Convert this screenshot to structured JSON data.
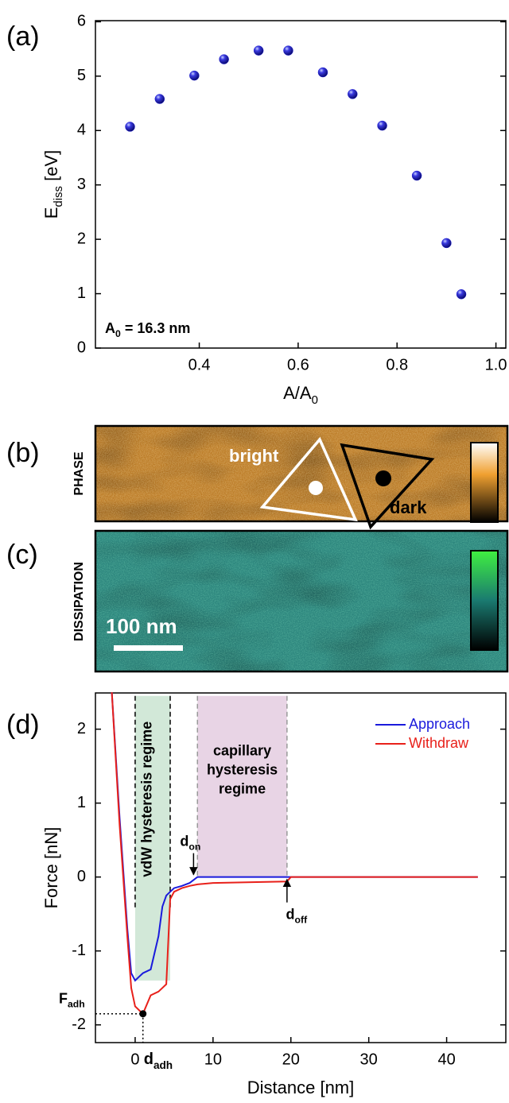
{
  "chart_data": [
    {
      "type": "scatter",
      "panel": "(a)",
      "xlabel": [
        "A/A",
        "0"
      ],
      "ylabel": [
        "E",
        "diss",
        " [eV]"
      ],
      "x": [
        0.26,
        0.32,
        0.39,
        0.45,
        0.52,
        0.58,
        0.65,
        0.71,
        0.77,
        0.84,
        0.9,
        0.93
      ],
      "values": [
        4.07,
        4.58,
        5.01,
        5.31,
        5.47,
        5.47,
        5.07,
        4.67,
        4.09,
        3.17,
        1.93,
        0.99
      ],
      "color": "#1f1fd0",
      "xlim": [
        0.19,
        1.02
      ],
      "ylim": [
        0,
        6.02
      ],
      "xticks": [
        0.4,
        0.6,
        0.8,
        {
          "value": 1,
          "label": "1.0"
        }
      ],
      "yticks": [
        0,
        1,
        2,
        3,
        4,
        5,
        6
      ],
      "annotation": [
        "A",
        "0",
        " = 16.3 nm"
      ]
    },
    {
      "type": "line",
      "panel": "(d)",
      "xlabel": "Distance [nm]",
      "ylabel": "Force [nN]",
      "x": [
        -3,
        -2,
        -1,
        -0.5,
        0,
        0.5,
        1,
        2,
        3,
        3.5,
        4,
        4.5,
        5,
        6,
        7,
        8,
        10,
        15,
        19.5,
        20,
        25,
        30,
        35,
        40,
        44
      ],
      "series": [
        {
          "name": "Approach",
          "color": "#1a1adc",
          "values": [
            2.5,
            0.8,
            -0.7,
            -1.3,
            -1.4,
            -1.35,
            -1.3,
            -1.25,
            -0.8,
            -0.4,
            -0.25,
            -0.2,
            -0.15,
            -0.12,
            -0.08,
            0,
            0,
            0,
            0,
            0,
            0,
            0,
            0,
            0,
            0
          ]
        },
        {
          "name": "Withdraw",
          "color": "#e8201a",
          "values": [
            2.5,
            0.7,
            -0.8,
            -1.5,
            -1.75,
            -1.8,
            -1.85,
            -1.6,
            -1.55,
            -1.5,
            -1.45,
            -0.3,
            -0.2,
            -0.15,
            -0.12,
            -0.1,
            -0.08,
            -0.07,
            -0.06,
            0,
            0,
            0,
            0,
            0,
            0
          ]
        }
      ],
      "xlim": [
        -5.1,
        47.6
      ],
      "ylim": [
        -2.24,
        2.49
      ],
      "xticks": [
        0,
        10,
        20,
        30,
        40
      ],
      "yticks": [
        -2,
        -1,
        0,
        1,
        2
      ],
      "legend": "upper right",
      "regions": [
        {
          "label": "vdW hysteresis regime",
          "x": [
            0,
            4.5
          ],
          "y": [
            -1.4,
            2.45
          ],
          "color": "#cde6d4"
        },
        {
          "label": [
            "capillary",
            "hysteresis",
            "regime"
          ],
          "x": [
            8,
            19.5
          ],
          "y": [
            0,
            2.45
          ],
          "color": "#e5cfe2"
        }
      ],
      "f_adh": {
        "label": [
          "F",
          "adh"
        ],
        "value": -1.85
      },
      "d_adh": {
        "label": [
          "d",
          "adh"
        ],
        "value": 1
      },
      "d_on": {
        "label": [
          "d",
          "on"
        ],
        "value": 7.5
      },
      "d_off": {
        "label": [
          "d",
          "off"
        ],
        "value": 19.5
      }
    }
  ],
  "images": [
    {
      "panel": "(b)",
      "label": "PHASE",
      "annotations": [
        "bright",
        "dark"
      ]
    },
    {
      "panel": "(c)",
      "label": "DISSIPATION",
      "scale_bar": "100 nm"
    }
  ]
}
